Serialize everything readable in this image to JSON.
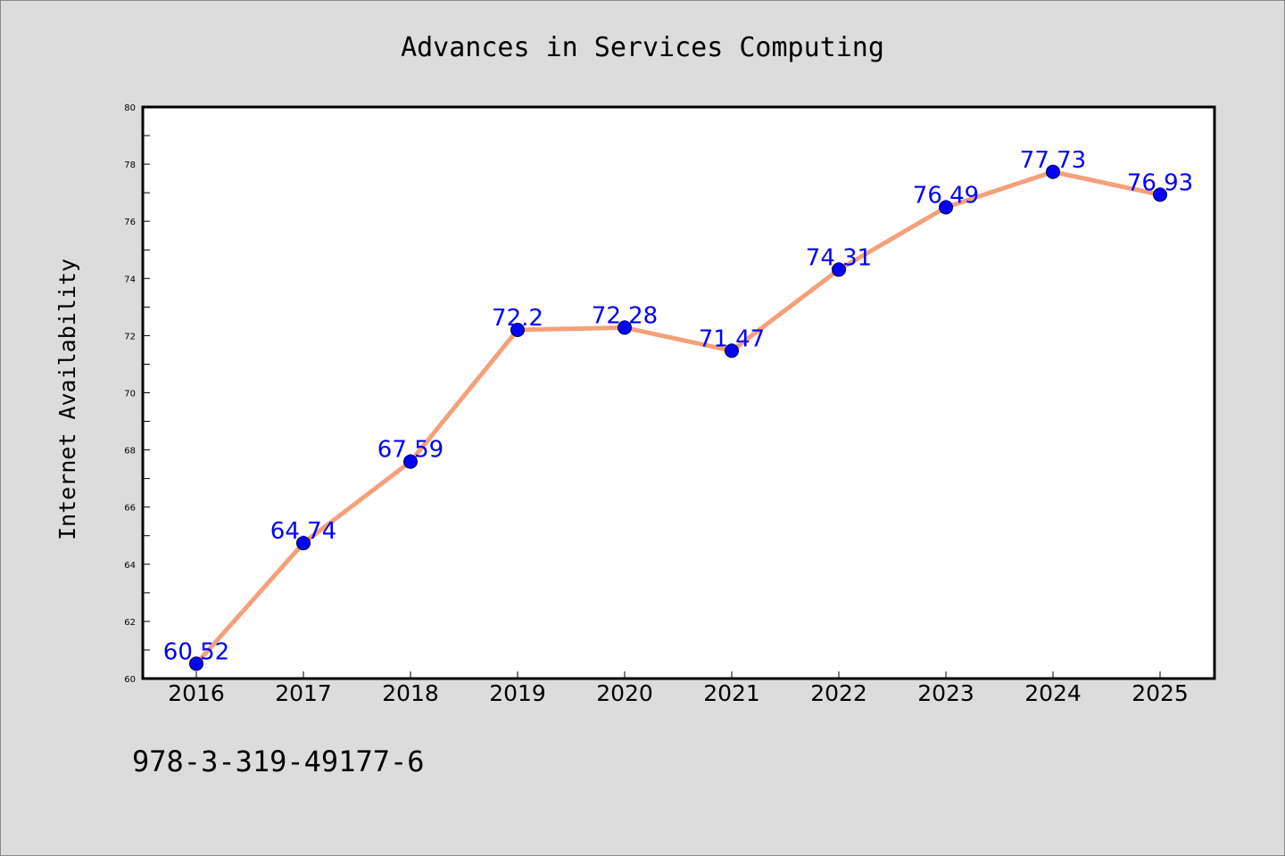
{
  "chart_data": {
    "type": "line",
    "title": "Advances in Services Computing",
    "xlabel": "",
    "ylabel": "Internet Availability",
    "categories": [
      "2016",
      "2017",
      "2018",
      "2019",
      "2020",
      "2021",
      "2022",
      "2023",
      "2024",
      "2025"
    ],
    "series": [
      {
        "values": [
          60.52,
          64.74,
          67.59,
          72.2,
          72.28,
          71.47,
          74.31,
          76.49,
          77.73,
          76.93
        ],
        "data_labels": [
          "60.52",
          "64.74",
          "67.59",
          "72.2",
          "72.28",
          "71.47",
          "74.31",
          "76.49",
          "77.73",
          "76.93"
        ],
        "line_color": "#f4a07a",
        "marker_color": "#0000ff"
      }
    ],
    "ylim": [
      60,
      80
    ],
    "yticks": [
      "60",
      "62",
      "64",
      "66",
      "68",
      "70",
      "72",
      "74",
      "76",
      "78",
      "80"
    ],
    "grid": false,
    "legend": "none"
  },
  "footer": {
    "isbn": "978-3-319-49177-6"
  },
  "colors": {
    "background": "#dcdcdc",
    "plot_background": "#ffffff",
    "line": "#f4a07a",
    "marker": "#0000ff",
    "data_label": "#0000ff"
  }
}
